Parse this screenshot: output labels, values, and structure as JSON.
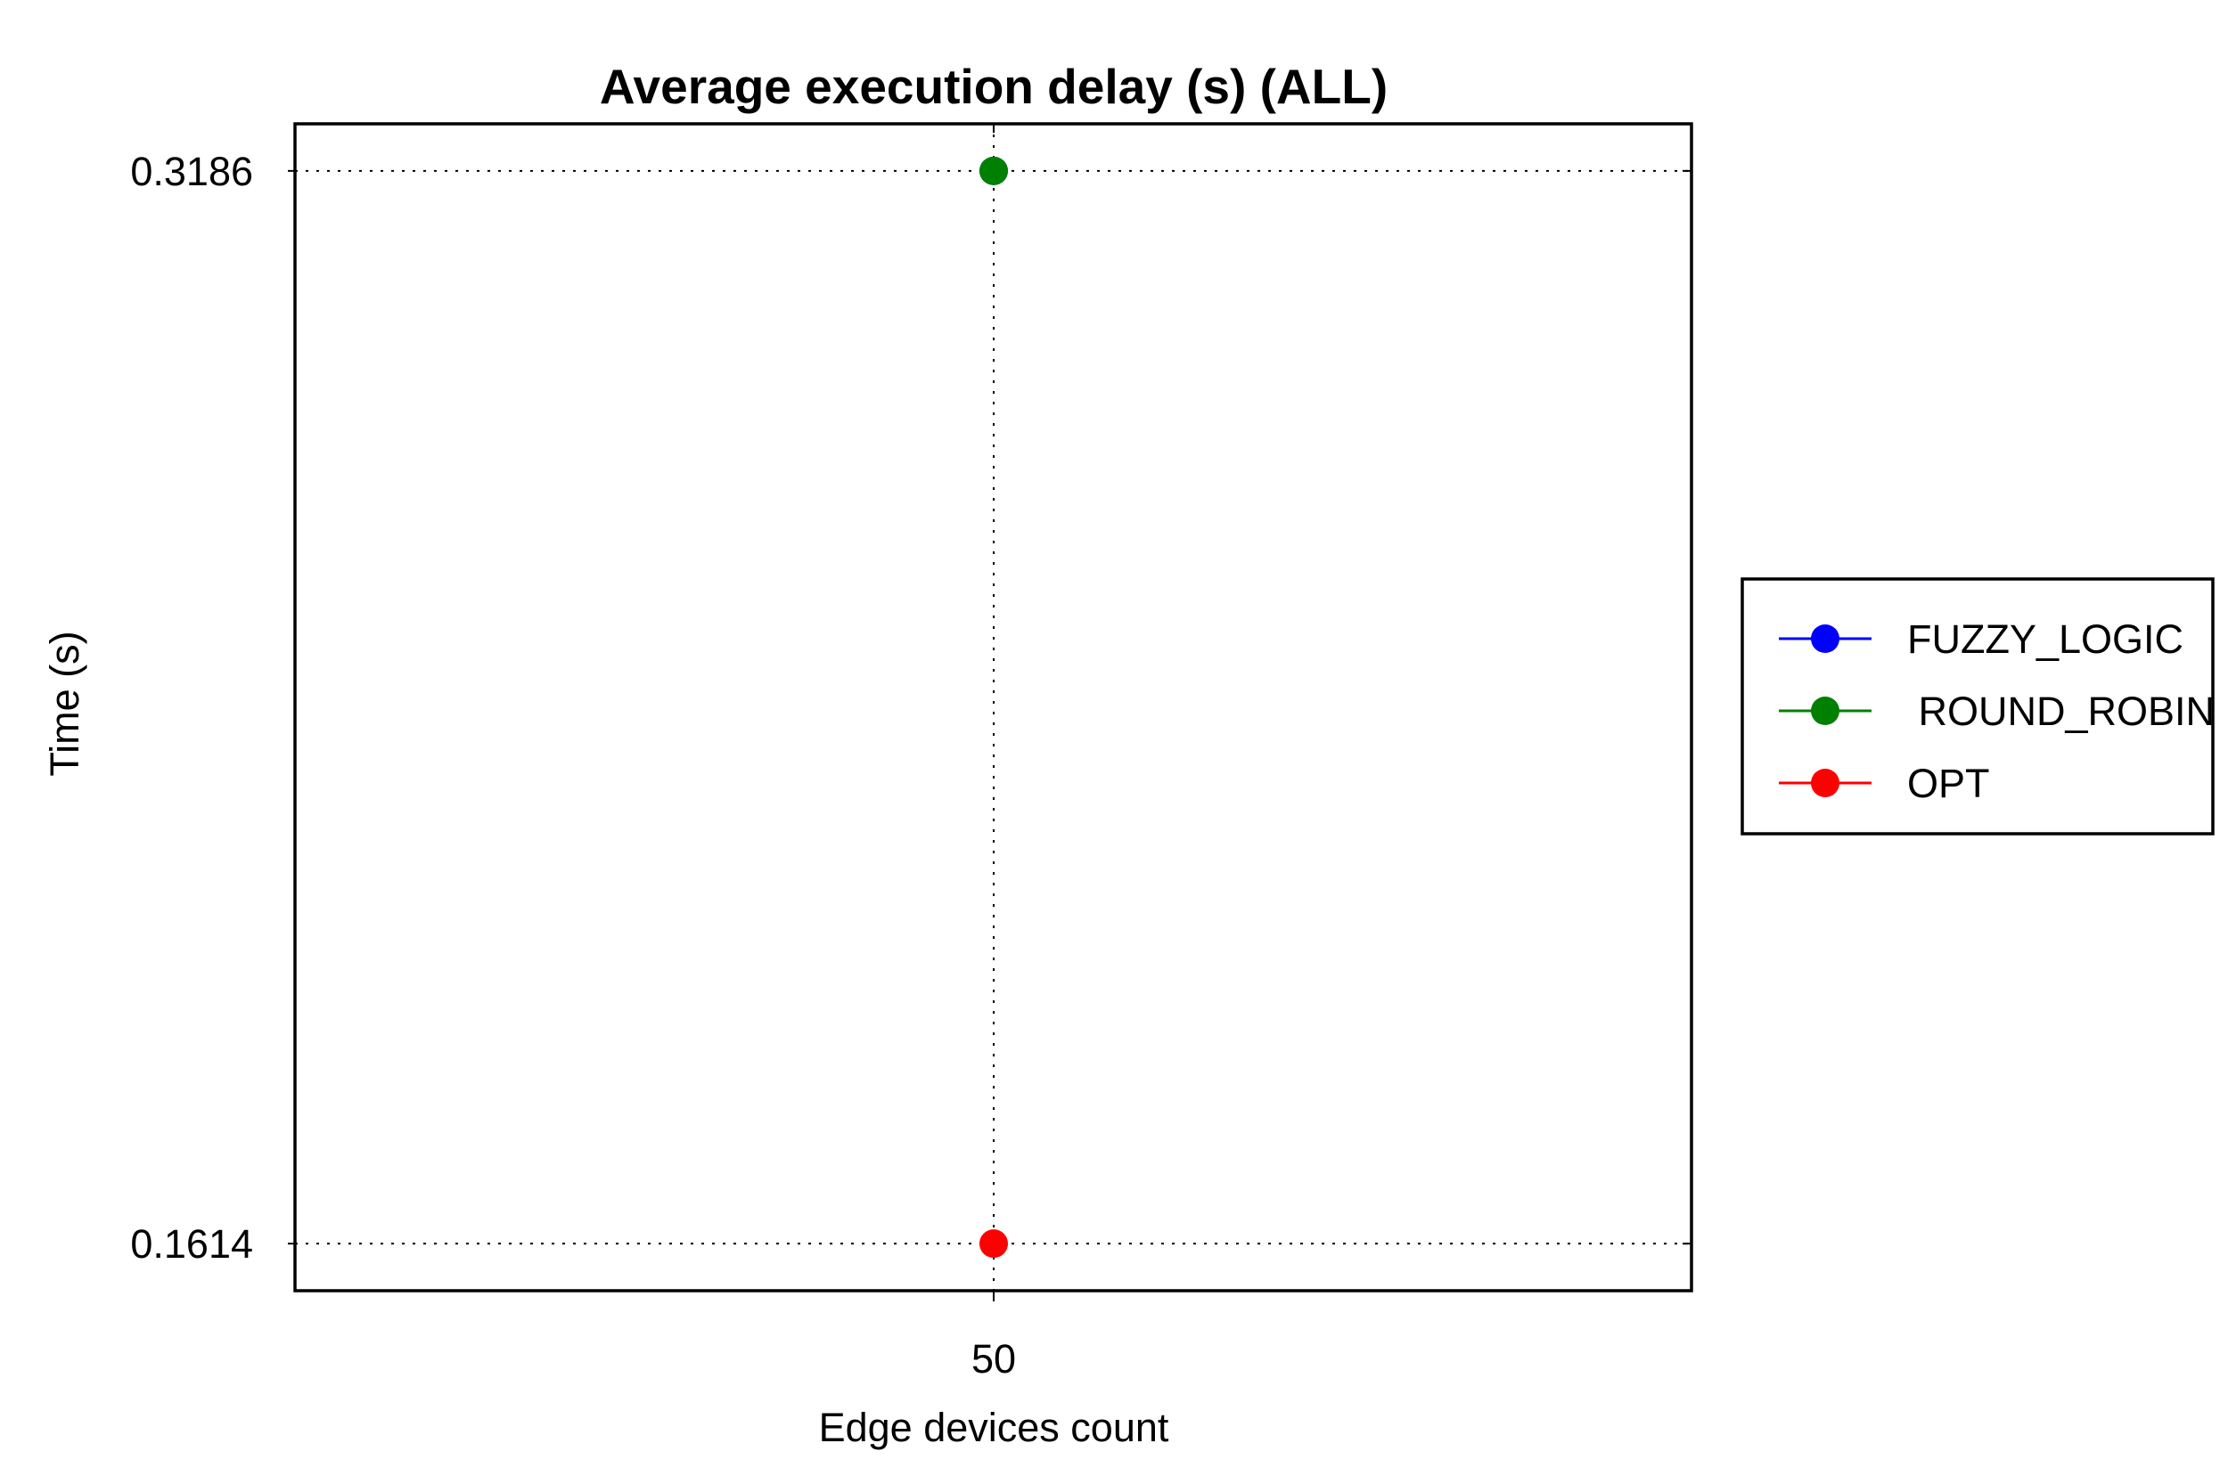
{
  "chart_data": {
    "type": "line",
    "title": "Average execution delay (s) (ALL)",
    "xlabel": "Edge devices count",
    "ylabel": "Time (s)",
    "x": [
      50
    ],
    "x_tick_labels": [
      "50"
    ],
    "y_tick_labels": [
      "0.3186",
      "0.1614"
    ],
    "y_ticks": [
      0.3186,
      0.1614
    ],
    "ylim": [
      0.1545,
      0.3255
    ],
    "grid": true,
    "legend_position": "right",
    "series": [
      {
        "name": "FUZZY_LOGIC",
        "color": "#0000ff",
        "values": [
          0.3186
        ]
      },
      {
        "name": " ROUND_ROBIN",
        "color": "#008000",
        "values": [
          0.3186
        ]
      },
      {
        "name": "OPT",
        "color": "#ff0000",
        "values": [
          0.1614
        ]
      }
    ]
  }
}
